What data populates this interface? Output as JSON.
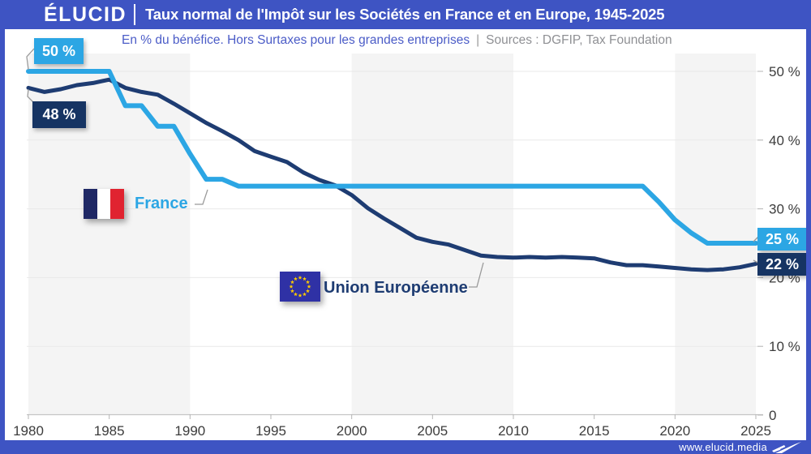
{
  "header": {
    "logo": "ÉLUCID",
    "title": "Taux normal de l'Impôt sur les Sociétés en France et en Europe, 1945-2025"
  },
  "subtitle": {
    "description": "En % du bénéfice. Hors Surtaxes pour les grandes entreprises",
    "separator": "|",
    "sources": "Sources : DGFIP, Tax Foundation"
  },
  "footer": {
    "url": "www.elucid.media"
  },
  "colors": {
    "frame_blue": "#3e54c3",
    "france_blue": "#2ca6e4",
    "eu_navy": "#1e3c72",
    "box_navy": "#163463",
    "band_gray": "#f4f4f4",
    "gridline": "#e9e9e9",
    "axis_text": "#3c3c3c"
  },
  "annotations": {
    "france_start": "50 %",
    "eu_start": "48 %",
    "france_end": "25 %",
    "eu_end": "22 %"
  },
  "legend": {
    "france": "France",
    "eu": "Union Européenne"
  },
  "chart_data": {
    "type": "line",
    "title": "Taux normal de l'Impôt sur les Sociétés en France et en Europe, 1945-2025",
    "subtitle": "En % du bénéfice. Hors Surtaxes pour les grandes entreprises",
    "sources": "Sources : DGFIP, Tax Foundation",
    "xlabel": "",
    "ylabel": "%",
    "xlim": [
      1980,
      2025
    ],
    "ylim": [
      0,
      52
    ],
    "grid": "horizontal",
    "legend_position": "on-chart flag labels",
    "x_ticks": [
      1980,
      1985,
      1990,
      1995,
      2000,
      2005,
      2010,
      2015,
      2020,
      2025
    ],
    "y_ticks": [
      {
        "value": 50,
        "label": "50 %"
      },
      {
        "value": 40,
        "label": "40 %"
      },
      {
        "value": 30,
        "label": "30 %"
      },
      {
        "value": 20,
        "label": "20 %"
      },
      {
        "value": 10,
        "label": "10 %"
      },
      {
        "value": 0,
        "label": "0"
      }
    ],
    "background_bands_years": [
      [
        1980,
        1990
      ],
      [
        2000,
        2010
      ],
      [
        2020,
        2025
      ]
    ],
    "x": [
      1980,
      1981,
      1982,
      1983,
      1984,
      1985,
      1986,
      1987,
      1988,
      1989,
      1990,
      1991,
      1992,
      1993,
      1994,
      1995,
      1996,
      1997,
      1998,
      1999,
      2000,
      2001,
      2002,
      2003,
      2004,
      2005,
      2006,
      2007,
      2008,
      2009,
      2010,
      2011,
      2012,
      2013,
      2014,
      2015,
      2016,
      2017,
      2018,
      2019,
      2020,
      2021,
      2022,
      2023,
      2024,
      2025
    ],
    "series": [
      {
        "name": "France",
        "color": "#2ca6e4",
        "start_label": "50 %",
        "end_label": "25 %",
        "values": [
          50,
          50,
          50,
          50,
          50,
          50,
          45,
          45,
          42,
          42,
          38,
          34.3,
          34.3,
          33.3,
          33.3,
          33.3,
          33.3,
          33.3,
          33.3,
          33.3,
          33.3,
          33.3,
          33.3,
          33.3,
          33.3,
          33.3,
          33.3,
          33.3,
          33.3,
          33.3,
          33.3,
          33.3,
          33.3,
          33.3,
          33.3,
          33.3,
          33.3,
          33.3,
          33.3,
          31,
          28.4,
          26.5,
          25,
          25,
          25,
          25
        ]
      },
      {
        "name": "Union Européenne",
        "color": "#1e3c72",
        "start_label": "48 %",
        "end_label": "22 %",
        "values": [
          47.6,
          47.0,
          47.4,
          48.0,
          48.3,
          48.8,
          47.6,
          47.0,
          46.6,
          45.3,
          43.9,
          42.5,
          41.3,
          40.0,
          38.4,
          37.6,
          36.8,
          35.3,
          34.2,
          33.4,
          32.0,
          30.1,
          28.6,
          27.2,
          25.8,
          25.2,
          24.8,
          24.0,
          23.2,
          23.0,
          22.9,
          23.0,
          22.9,
          23.0,
          22.9,
          22.8,
          22.2,
          21.8,
          21.8,
          21.6,
          21.4,
          21.2,
          21.1,
          21.2,
          21.5,
          22.0
        ]
      }
    ]
  }
}
